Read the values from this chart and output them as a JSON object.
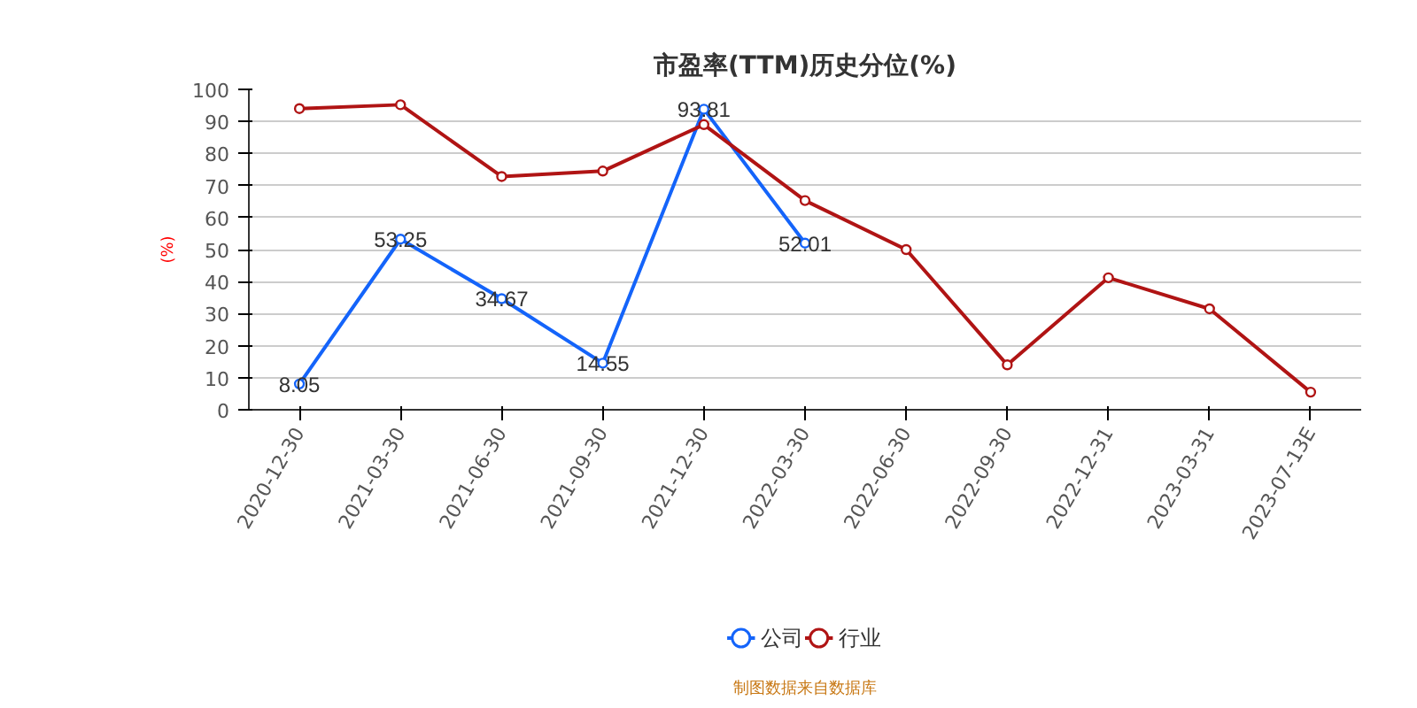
{
  "chart_data": {
    "type": "line",
    "title": "市盈率(TTM)历史分位(%)",
    "ylabel": "(%)",
    "categories": [
      "2020-12-30",
      "2021-03-30",
      "2021-06-30",
      "2021-09-30",
      "2021-12-30",
      "2022-03-30",
      "2022-06-30",
      "2022-09-30",
      "2022-12-31",
      "2023-03-31",
      "2023-07-13E"
    ],
    "series": [
      {
        "name": "公司",
        "color": "#1464fa",
        "values": [
          8.05,
          53.25,
          34.67,
          14.55,
          93.81,
          52.01,
          null,
          null,
          null,
          null,
          null
        ],
        "value_labels": [
          "8.05",
          "53.25",
          "34.67",
          "14.55",
          "93.81",
          "52.01",
          null,
          null,
          null,
          null,
          null
        ]
      },
      {
        "name": "行业",
        "color": "#b01414",
        "values": [
          94,
          95.2,
          72.8,
          74.5,
          89,
          65.3,
          50,
          14,
          41.2,
          31.5,
          5.5
        ]
      }
    ],
    "ylim": [
      0,
      100
    ],
    "yticks": [
      0,
      10,
      20,
      30,
      40,
      50,
      60,
      70,
      80,
      90,
      100
    ],
    "grid": "y",
    "legend": "bottom",
    "marker": "circle",
    "line_style": "solid",
    "annotations": [
      "制图数据来自数据库"
    ]
  }
}
